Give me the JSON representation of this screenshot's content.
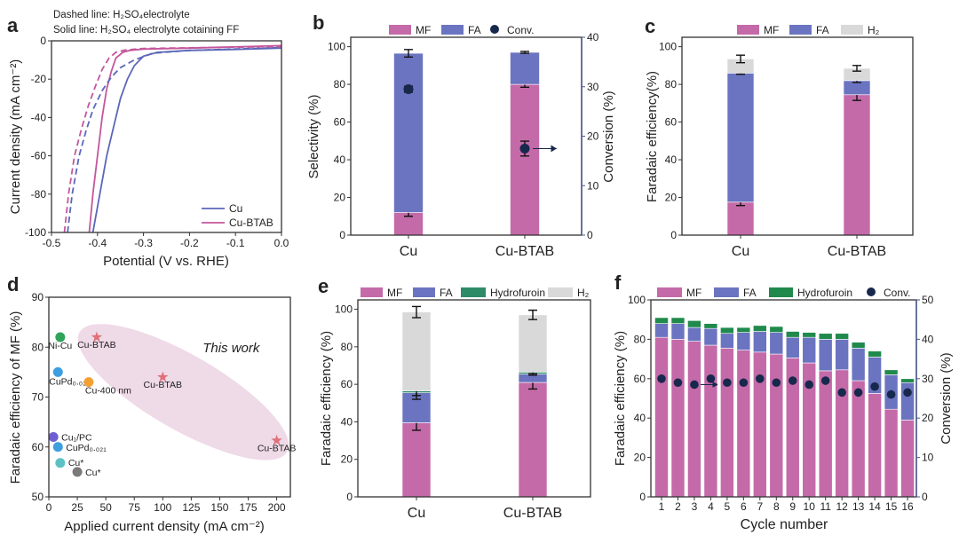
{
  "colors": {
    "MF": "#c46aa8",
    "FA": "#6b74c0",
    "H2": "#d9d9d9",
    "Hydrofuroin_e": "#2e8b68",
    "Hydrofuroin_f": "#1f8a4c",
    "Conv": "#17284d",
    "right_axis": "#4a5a8a",
    "Cu": "#5b67b8",
    "Cu-BTAB": "#c4569b",
    "ellipse": "#ecd3e3",
    "this_work": "#e0707a"
  },
  "chart_data": [
    {
      "panel": "a",
      "type": "line",
      "notes": [
        "Dashed line: H₂SO₄electrolyte",
        "Solid line: H₂SO₄ electrolyte cotaining FF"
      ],
      "xlabel": "Potential (V vs. RHE)",
      "ylabel": "Current density (mA cm⁻²)",
      "xlim": [
        -0.5,
        0.0
      ],
      "ylim": [
        -100,
        0
      ],
      "xticks": [
        "-0.5",
        "-0.4",
        "-0.3",
        "-0.2",
        "-0.1",
        "0.0"
      ],
      "yticks": [
        "-100",
        "-80",
        "-60",
        "-40",
        "-20",
        "0"
      ],
      "legend": [
        "Cu",
        "Cu-BTAB"
      ],
      "series": [
        {
          "name": "Cu",
          "style": "solid",
          "x": [
            -0.41,
            -0.395,
            -0.38,
            -0.365,
            -0.35,
            -0.335,
            -0.32,
            -0.3,
            -0.27,
            -0.2,
            -0.1,
            0.0
          ],
          "y": [
            -100,
            -80,
            -60,
            -45,
            -30,
            -20,
            -13,
            -8,
            -6,
            -5,
            -4.5,
            -3.8
          ]
        },
        {
          "name": "Cu-BTAB",
          "style": "solid",
          "x": [
            -0.418,
            -0.41,
            -0.4,
            -0.39,
            -0.38,
            -0.37,
            -0.36,
            -0.345,
            -0.33,
            -0.3,
            -0.2,
            0.0
          ],
          "y": [
            -100,
            -80,
            -60,
            -40,
            -25,
            -16,
            -9,
            -6,
            -5,
            -4.3,
            -3.8,
            -2.5
          ]
        },
        {
          "name": "Cu",
          "style": "dashed",
          "x": [
            -0.465,
            -0.455,
            -0.44,
            -0.425,
            -0.41,
            -0.39,
            -0.37,
            -0.35,
            -0.32,
            -0.28,
            -0.2,
            0.0
          ],
          "y": [
            -100,
            -80,
            -60,
            -47,
            -36,
            -26,
            -19,
            -14,
            -10,
            -6.5,
            -5,
            -3.5
          ]
        },
        {
          "name": "Cu-BTAB",
          "style": "dashed",
          "x": [
            -0.472,
            -0.463,
            -0.45,
            -0.435,
            -0.42,
            -0.405,
            -0.39,
            -0.375,
            -0.36,
            -0.34,
            -0.3,
            0.0
          ],
          "y": [
            -100,
            -80,
            -60,
            -46,
            -34,
            -24,
            -15,
            -9,
            -6,
            -4.8,
            -4,
            -3
          ]
        }
      ]
    },
    {
      "panel": "b",
      "type": "bar",
      "categories": [
        "Cu",
        "Cu-BTAB"
      ],
      "ylabel": "Selectivity (%)",
      "ylabel_right": "Conversion (%)",
      "ylim": [
        0,
        105
      ],
      "ylim_right": [
        0,
        40
      ],
      "yticks": [
        "0",
        "20",
        "40",
        "60",
        "80",
        "100"
      ],
      "yticks_right": [
        "0",
        "10",
        "20",
        "30",
        "40"
      ],
      "legend": [
        "MF",
        "FA",
        "Conv."
      ],
      "stacks": [
        {
          "name": "MF",
          "values": [
            12,
            80
          ],
          "errors": [
            2,
            1.5
          ]
        },
        {
          "name": "FA",
          "values": [
            84.5,
            17
          ],
          "errors": [
            2,
            0.5
          ]
        }
      ],
      "conversion": {
        "name": "Conv.",
        "values": [
          29.5,
          17.5
        ],
        "errors": [
          0.6,
          1.5
        ]
      }
    },
    {
      "panel": "c",
      "type": "bar",
      "categories": [
        "Cu",
        "Cu-BTAB"
      ],
      "ylabel": "Faradaic efficiency(%)",
      "ylim": [
        0,
        105
      ],
      "yticks": [
        "0",
        "20",
        "40",
        "60",
        "80",
        "100"
      ],
      "legend": [
        "MF",
        "FA",
        "H₂"
      ],
      "stacks": [
        {
          "name": "MF",
          "values": [
            17.5,
            74.5
          ],
          "errors": [
            1.8,
            3
          ]
        },
        {
          "name": "FA",
          "values": [
            68.5,
            7.5
          ],
          "errors": [
            0.6,
            1
          ]
        },
        {
          "name": "H₂",
          "values": [
            7.5,
            6.5
          ],
          "errors": [
            2,
            1.5
          ]
        }
      ]
    },
    {
      "panel": "d",
      "type": "scatter",
      "xlabel": "Applied current density (mA cm⁻²)",
      "ylabel": "Faradaic efficiency of MF (%)",
      "xlim": [
        0,
        212
      ],
      "ylim": [
        50,
        90
      ],
      "xticks": [
        "0",
        "25",
        "50",
        "75",
        "100",
        "125",
        "150",
        "175",
        "200"
      ],
      "yticks": [
        "50",
        "60",
        "70",
        "80",
        "90"
      ],
      "annotation": "This work",
      "points": [
        {
          "label": "Ni-Cu",
          "x": 10,
          "y": 82,
          "color": "#2ea35a",
          "marker": "circle"
        },
        {
          "label": "CuPd₀.₀₂₁",
          "x": 8,
          "y": 75,
          "color": "#3d9ee0",
          "marker": "circle"
        },
        {
          "label": "Cu-400 nm",
          "x": 35,
          "y": 73,
          "color": "#f3a033",
          "marker": "circle"
        },
        {
          "label": "Cu₁/PC",
          "x": 4,
          "y": 62,
          "color": "#6e5fd0",
          "marker": "circle"
        },
        {
          "label": "CuPd₀.₀₂₁",
          "x": 8,
          "y": 60,
          "color": "#3d9ee0",
          "marker": "circle"
        },
        {
          "label": "Cu*",
          "x": 10,
          "y": 56.8,
          "color": "#5cc1c4",
          "marker": "circle"
        },
        {
          "label": "Cu*",
          "x": 25,
          "y": 55,
          "color": "#7a7a7a",
          "marker": "circle"
        },
        {
          "label": "Cu-BTAB",
          "x": 42,
          "y": 82,
          "color": "#e0707a",
          "marker": "star"
        },
        {
          "label": "Cu-BTAB",
          "x": 100,
          "y": 74,
          "color": "#e0707a",
          "marker": "star"
        },
        {
          "label": "Cu-BTAB",
          "x": 200,
          "y": 61.3,
          "color": "#e0707a",
          "marker": "star"
        }
      ]
    },
    {
      "panel": "e",
      "type": "bar",
      "categories": [
        "Cu",
        "Cu-BTAB"
      ],
      "ylabel": "Faradaic efficiency (%)",
      "ylim": [
        0,
        105
      ],
      "yticks": [
        "0",
        "20",
        "40",
        "60",
        "80",
        "100"
      ],
      "legend": [
        "MF",
        "FA",
        "Hydrofuroin",
        "H₂"
      ],
      "stacks": [
        {
          "name": "MF",
          "values": [
            39.5,
            61
          ],
          "errors": [
            4,
            3.5
          ]
        },
        {
          "name": "FA",
          "values": [
            16,
            4.5
          ],
          "errors": [
            3.5,
            0.6
          ]
        },
        {
          "name": "Hydrofuroin",
          "values": [
            1,
            1
          ],
          "errors": [
            2.5,
            0.8
          ]
        },
        {
          "name": "H₂",
          "values": [
            42,
            30.5
          ],
          "errors": [
            3,
            2.5
          ]
        }
      ]
    },
    {
      "panel": "f",
      "type": "bar",
      "categories": [
        "1",
        "2",
        "3",
        "4",
        "5",
        "6",
        "7",
        "8",
        "9",
        "10",
        "11",
        "12",
        "13",
        "14",
        "15",
        "16"
      ],
      "xlabel": "Cycle number",
      "ylabel": "Faradaic efficiency (%)",
      "ylabel_right": "Conversion (%)",
      "ylim": [
        0,
        100
      ],
      "ylim_right": [
        0,
        50
      ],
      "yticks": [
        "0",
        "20",
        "40",
        "60",
        "80",
        "100"
      ],
      "yticks_right": [
        "0",
        "10",
        "20",
        "30",
        "40",
        "50"
      ],
      "legend": [
        "MF",
        "FA",
        "Hydrofuroin",
        "Conv."
      ],
      "stacks": [
        {
          "name": "MF",
          "values": [
            81,
            80,
            79,
            77,
            75.5,
            74.5,
            73.5,
            72.5,
            70.5,
            68,
            64,
            64.5,
            59,
            52.5,
            44.5,
            39
          ]
        },
        {
          "name": "FA",
          "values": [
            7,
            8,
            7,
            8.5,
            7.5,
            9,
            10.5,
            11,
            10.5,
            13,
            16,
            15.5,
            16.5,
            18.5,
            17.5,
            19
          ]
        },
        {
          "name": "Hydrofuroin",
          "values": [
            3,
            3,
            3.5,
            2.5,
            3,
            2.5,
            3,
            3,
            3,
            2.5,
            3,
            3,
            3,
            3,
            2.5,
            2
          ]
        }
      ],
      "conversion": {
        "name": "Conv.",
        "values": [
          30,
          29,
          28.5,
          30,
          29,
          29,
          30,
          29,
          29.5,
          28.5,
          29.5,
          26.5,
          26.5,
          28,
          26,
          26.5
        ]
      }
    }
  ]
}
